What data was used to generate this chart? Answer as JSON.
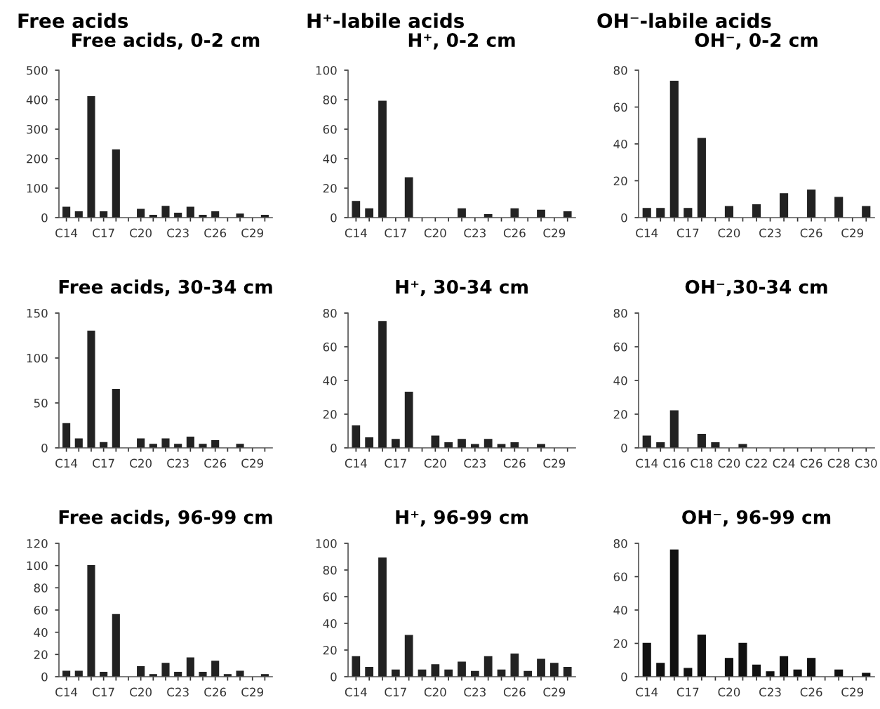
{
  "chart_data": [
    {
      "type": "bar",
      "title": "Free acids",
      "subtitle": "Free acids, 0-2 cm",
      "color": "#222222",
      "ylim": [
        0,
        500
      ],
      "yticks": [
        0,
        100,
        200,
        300,
        400,
        500
      ],
      "categories": [
        "C14",
        null,
        null,
        "C17",
        null,
        null,
        "C20",
        null,
        null,
        "C23",
        null,
        null,
        "C26",
        null,
        null,
        "C29",
        null
      ],
      "values": [
        35,
        20,
        410,
        20,
        230,
        null,
        28,
        8,
        38,
        15,
        35,
        8,
        20,
        null,
        12,
        null,
        8
      ]
    },
    {
      "type": "bar",
      "title": "H⁺-labile acids",
      "subtitle": "H⁺, 0-2 cm",
      "color": "#222222",
      "ylim": [
        0,
        100
      ],
      "yticks": [
        0,
        20,
        40,
        60,
        80,
        100
      ],
      "categories": [
        "C14",
        null,
        null,
        "C17",
        null,
        null,
        "C20",
        null,
        null,
        "C23",
        null,
        null,
        "C26",
        null,
        null,
        "C29",
        null
      ],
      "values": [
        11,
        6,
        79,
        null,
        27,
        null,
        null,
        null,
        6,
        null,
        2,
        null,
        6,
        null,
        5,
        null,
        4
      ]
    },
    {
      "type": "bar",
      "title": "OH⁻-labile acids",
      "subtitle": "OH⁻, 0-2 cm",
      "color": "#222222",
      "ylim": [
        0,
        80
      ],
      "yticks": [
        0,
        20,
        40,
        60,
        80
      ],
      "categories": [
        "C14",
        null,
        null,
        "C17",
        null,
        null,
        "C20",
        null,
        null,
        "C23",
        null,
        null,
        "C26",
        null,
        null,
        "C29",
        null
      ],
      "values": [
        5,
        5,
        74,
        5,
        43,
        null,
        6,
        null,
        7,
        null,
        13,
        null,
        15,
        null,
        11,
        null,
        6
      ]
    },
    {
      "type": "bar",
      "title": "Free acids, 30-34 cm",
      "color": "#222222",
      "ylim": [
        0,
        150
      ],
      "yticks": [
        0,
        50,
        100,
        150
      ],
      "categories": [
        "C14",
        null,
        null,
        "C17",
        null,
        null,
        "C20",
        null,
        null,
        "C23",
        null,
        null,
        "C26",
        null,
        null,
        "C29",
        null
      ],
      "values": [
        27,
        10,
        130,
        6,
        65,
        null,
        10,
        4,
        10,
        4,
        12,
        4,
        8,
        null,
        4,
        null,
        null
      ]
    },
    {
      "type": "bar",
      "title": "H⁺, 30-34 cm",
      "color": "#222222",
      "ylim": [
        0,
        80
      ],
      "yticks": [
        0,
        20,
        40,
        60,
        80
      ],
      "categories": [
        "C14",
        null,
        null,
        "C17",
        null,
        null,
        "C20",
        null,
        null,
        "C23",
        null,
        null,
        "C26",
        null,
        null,
        "C29",
        null
      ],
      "values": [
        13,
        6,
        75,
        5,
        33,
        null,
        7,
        3,
        5,
        2,
        5,
        2,
        3,
        null,
        2,
        null,
        null
      ]
    },
    {
      "type": "bar",
      "title": "OH⁻,30-34 cm",
      "color": "#222222",
      "ylim": [
        0,
        80
      ],
      "yticks": [
        0,
        20,
        40,
        60,
        80
      ],
      "categories": [
        "C14",
        null,
        "C16",
        null,
        "C18",
        null,
        "C20",
        null,
        "C22",
        null,
        "C24",
        null,
        "C26",
        null,
        "C28",
        null,
        "C30"
      ],
      "values": [
        7,
        3,
        22,
        null,
        8,
        3,
        null,
        2,
        null,
        null,
        null,
        null,
        null,
        null,
        null,
        null,
        null
      ]
    },
    {
      "type": "bar",
      "title": "Free acids, 96-99 cm",
      "color": "#222222",
      "ylim": [
        0,
        120
      ],
      "yticks": [
        0,
        20,
        40,
        60,
        80,
        100,
        120
      ],
      "categories": [
        "C14",
        null,
        null,
        "C17",
        null,
        null,
        "C20",
        null,
        null,
        "C23",
        null,
        null,
        "C26",
        null,
        null,
        "C29",
        null
      ],
      "values": [
        5,
        5,
        100,
        4,
        56,
        null,
        9,
        2,
        12,
        4,
        17,
        4,
        14,
        2,
        5,
        null,
        2
      ]
    },
    {
      "type": "bar",
      "title": "H⁺, 96-99 cm",
      "color": "#222222",
      "ylim": [
        0,
        100
      ],
      "yticks": [
        0,
        20,
        40,
        60,
        80,
        100
      ],
      "categories": [
        "C14",
        null,
        null,
        "C17",
        null,
        null,
        "C20",
        null,
        null,
        "C23",
        null,
        null,
        "C26",
        null,
        null,
        "C29",
        null
      ],
      "values": [
        15,
        7,
        89,
        5,
        31,
        5,
        9,
        5,
        11,
        4,
        15,
        5,
        17,
        4,
        13,
        10,
        7
      ]
    },
    {
      "type": "bar",
      "title": "OH⁻, 96-99 cm",
      "color": "#111111",
      "ylim": [
        0,
        80
      ],
      "yticks": [
        0,
        20,
        40,
        60,
        80
      ],
      "categories": [
        "C14",
        null,
        null,
        "C17",
        null,
        null,
        "C20",
        null,
        null,
        "C23",
        null,
        null,
        "C26",
        null,
        null,
        "C29",
        null
      ],
      "values": [
        20,
        8,
        76,
        5,
        25,
        null,
        11,
        20,
        7,
        3,
        12,
        4,
        11,
        null,
        4,
        null,
        2
      ]
    }
  ]
}
